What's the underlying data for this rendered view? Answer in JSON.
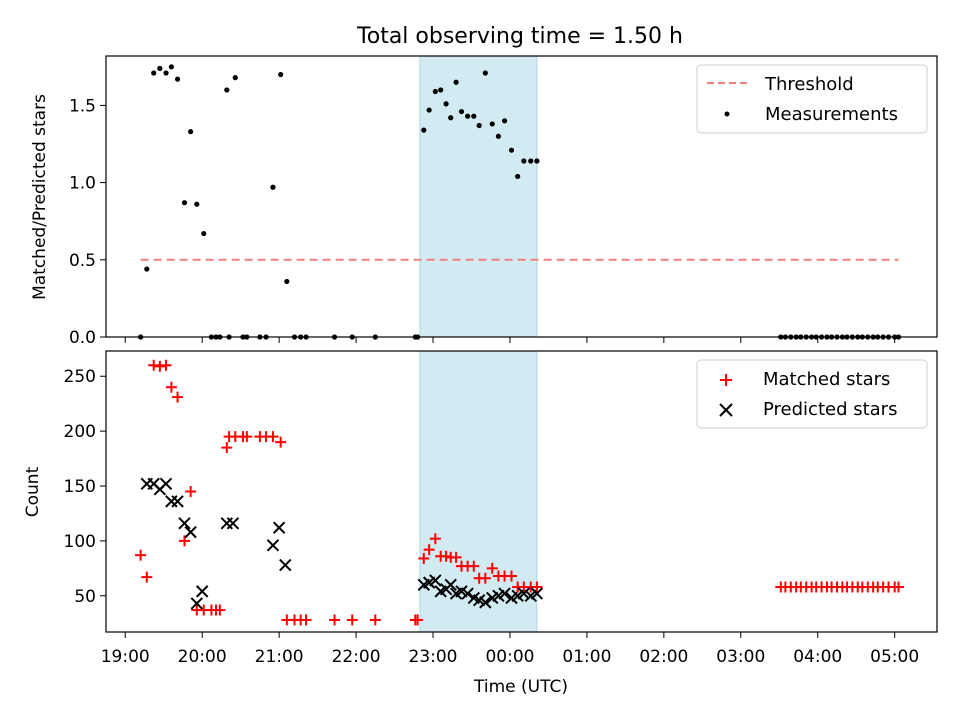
{
  "chart_data": [
    {
      "type": "scatter",
      "title": "Total observing time = 1.50 h",
      "xlabel": "",
      "ylabel": "Matched/Predicted stars",
      "xlim": [
        18.75,
        29.55
      ],
      "ylim": [
        0,
        1.82
      ],
      "yticks": [
        0.0,
        0.5,
        1.0,
        1.5
      ],
      "ytick_labels": [
        "0.0",
        "0.5",
        "1.0",
        "1.5"
      ],
      "shaded_region": {
        "x": [
          22.83,
          24.35
        ],
        "color": "#add8e6"
      },
      "legend": {
        "position": "upper right",
        "entries": [
          "Threshold",
          "Measurements"
        ]
      },
      "series": [
        {
          "name": "Threshold",
          "kind": "dashed-line",
          "color": "#f08080",
          "x": [
            19.2,
            29.05
          ],
          "y": [
            0.5,
            0.5
          ]
        },
        {
          "name": "Measurements",
          "kind": "dots",
          "color": "#000000",
          "x": [
            19.2,
            19.28,
            19.37,
            19.45,
            19.53,
            19.6,
            19.68,
            19.77,
            19.85,
            19.93,
            20.02,
            20.12,
            20.18,
            20.23,
            20.32,
            20.35,
            20.43,
            20.53,
            20.58,
            20.75,
            20.83,
            20.92,
            21.02,
            21.1,
            21.2,
            21.28,
            21.35,
            21.72,
            21.95,
            22.25,
            22.77,
            22.8,
            22.88,
            22.95,
            23.03,
            23.1,
            23.17,
            23.23,
            23.3,
            23.37,
            23.45,
            23.53,
            23.6,
            23.68,
            23.77,
            23.85,
            23.93,
            24.02,
            24.1,
            24.18,
            24.27,
            24.35,
            27.52,
            27.58,
            27.65,
            27.72,
            27.78,
            27.85,
            27.92,
            27.98,
            28.05,
            28.12,
            28.18,
            28.25,
            28.32,
            28.38,
            28.45,
            28.52,
            28.58,
            28.65,
            28.72,
            28.78,
            28.85,
            28.92,
            29.0,
            29.05
          ],
          "y": [
            0.0,
            0.44,
            1.71,
            1.74,
            1.71,
            1.75,
            1.67,
            0.87,
            1.33,
            0.86,
            0.67,
            0.0,
            0.0,
            0.0,
            1.6,
            0.0,
            1.68,
            0.0,
            0.0,
            0.0,
            0.0,
            0.97,
            1.7,
            0.36,
            0.0,
            0.0,
            0.0,
            0.0,
            0.0,
            0.0,
            0.0,
            0.0,
            1.34,
            1.47,
            1.59,
            1.6,
            1.51,
            1.42,
            1.65,
            1.46,
            1.43,
            1.43,
            1.37,
            1.71,
            1.38,
            1.3,
            1.4,
            1.21,
            1.04,
            1.14,
            1.14,
            1.14,
            0.0,
            0.0,
            0.0,
            0.0,
            0.0,
            0.0,
            0.0,
            0.0,
            0.0,
            0.0,
            0.0,
            0.0,
            0.0,
            0.0,
            0.0,
            0.0,
            0.0,
            0.0,
            0.0,
            0.0,
            0.0,
            0.0,
            0.0,
            0.0
          ]
        }
      ]
    },
    {
      "type": "scatter",
      "title": "",
      "xlabel": "Time (UTC)",
      "ylabel": "Count",
      "xlim": [
        18.75,
        29.55
      ],
      "ylim": [
        17,
        273
      ],
      "yticks": [
        50,
        100,
        150,
        200,
        250
      ],
      "ytick_labels": [
        "50",
        "100",
        "150",
        "200",
        "250"
      ],
      "xticks": [
        19,
        20,
        21,
        22,
        23,
        24,
        25,
        26,
        27,
        28,
        29
      ],
      "xtick_labels": [
        "19:00",
        "20:00",
        "21:00",
        "22:00",
        "23:00",
        "00:00",
        "01:00",
        "02:00",
        "03:00",
        "04:00",
        "05:00"
      ],
      "shaded_region": {
        "x": [
          22.83,
          24.35
        ],
        "color": "#add8e6"
      },
      "legend": {
        "position": "upper right",
        "entries": [
          "Matched stars",
          "Predicted stars"
        ]
      },
      "series": [
        {
          "name": "Matched stars",
          "kind": "plus",
          "color": "#ff0000",
          "x": [
            19.2,
            19.28,
            19.37,
            19.45,
            19.53,
            19.6,
            19.68,
            19.77,
            19.85,
            19.93,
            20.02,
            20.12,
            20.18,
            20.23,
            20.32,
            20.35,
            20.43,
            20.53,
            20.58,
            20.75,
            20.83,
            20.92,
            21.02,
            21.1,
            21.2,
            21.28,
            21.35,
            21.72,
            21.95,
            22.25,
            22.77,
            22.8,
            22.88,
            22.95,
            23.03,
            23.1,
            23.17,
            23.23,
            23.3,
            23.37,
            23.45,
            23.53,
            23.6,
            23.68,
            23.77,
            23.85,
            23.93,
            24.02,
            24.1,
            24.18,
            24.27,
            24.35,
            27.52,
            27.58,
            27.65,
            27.72,
            27.78,
            27.85,
            27.92,
            27.98,
            28.05,
            28.12,
            28.18,
            28.25,
            28.32,
            28.38,
            28.45,
            28.52,
            28.58,
            28.65,
            28.72,
            28.78,
            28.85,
            28.92,
            29.0,
            29.05
          ],
          "y": [
            87,
            67,
            260,
            259,
            260,
            240,
            231,
            100,
            145,
            37,
            37,
            37,
            37,
            37,
            185,
            195,
            195,
            195,
            195,
            195,
            195,
            195,
            190,
            28,
            28,
            28,
            28,
            28,
            28,
            28,
            28,
            28,
            84,
            92,
            102,
            86,
            86,
            85,
            85,
            77,
            77,
            77,
            66,
            66,
            75,
            68,
            68,
            68,
            58,
            58,
            58,
            58,
            58,
            58,
            58,
            58,
            58,
            58,
            58,
            58,
            58,
            58,
            58,
            58,
            58,
            58,
            58,
            58,
            58,
            58,
            58,
            58,
            58,
            58,
            58,
            58
          ]
        },
        {
          "name": "Predicted stars",
          "kind": "x",
          "color": "#000000",
          "x": [
            19.28,
            19.37,
            19.45,
            19.53,
            19.6,
            19.68,
            19.77,
            19.85,
            19.93,
            20.0,
            20.32,
            20.4,
            20.92,
            21.0,
            21.08,
            22.88,
            22.95,
            23.03,
            23.1,
            23.17,
            23.23,
            23.3,
            23.37,
            23.45,
            23.53,
            23.6,
            23.68,
            23.77,
            23.85,
            23.93,
            24.02,
            24.1,
            24.18,
            24.27,
            24.35
          ],
          "y": [
            152,
            152,
            147,
            152,
            136,
            136,
            116,
            108,
            43,
            54,
            116,
            116,
            96,
            112,
            78,
            60,
            62,
            64,
            54,
            56,
            60,
            52,
            54,
            52,
            48,
            46,
            44,
            48,
            50,
            52,
            48,
            50,
            52,
            50,
            52
          ]
        }
      ]
    }
  ]
}
